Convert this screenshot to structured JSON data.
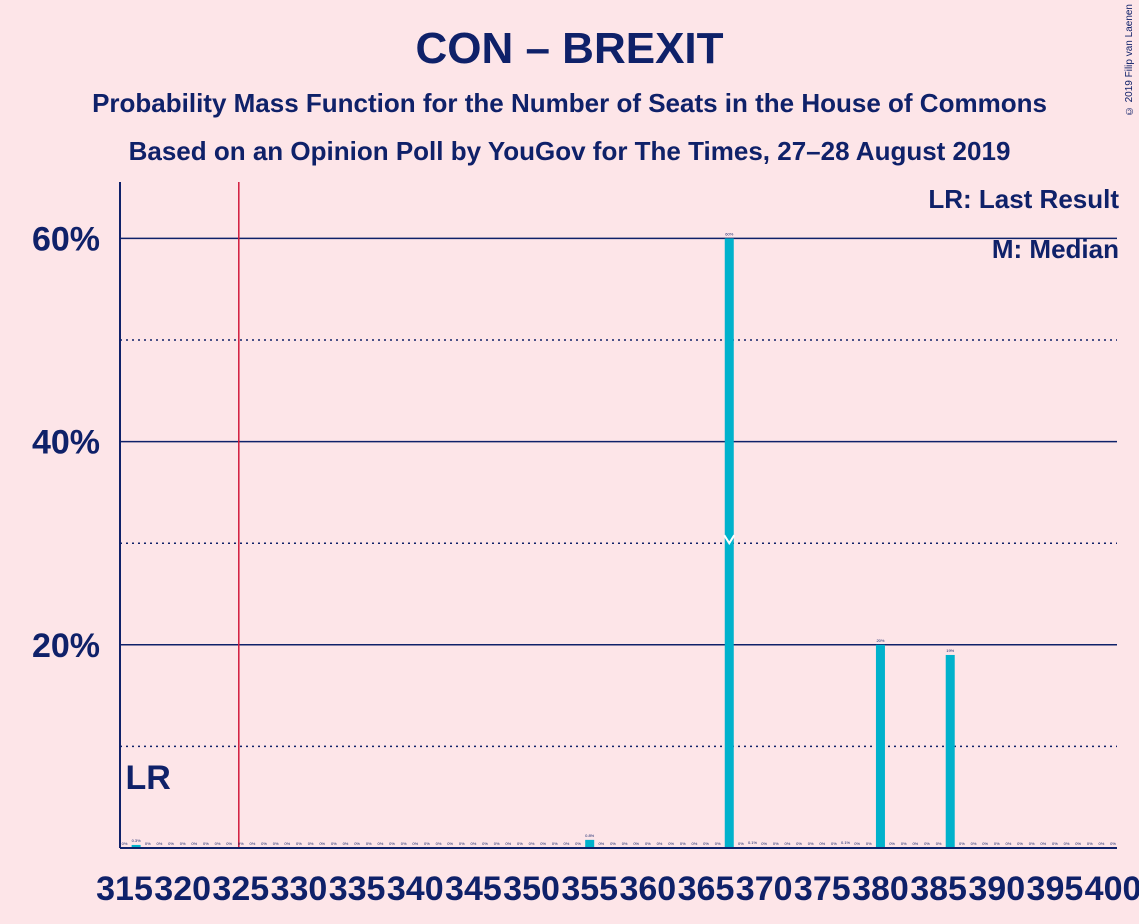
{
  "chart_data": {
    "type": "bar",
    "title": "CON – BREXIT",
    "subtitle_1": "Probability Mass Function for the Number of Seats in the House of Commons",
    "subtitle_2": "Based on an Opinion Poll by YouGov for The Times, 27–28 August 2019",
    "copyright": "© 2019 Filip van Laenen",
    "legend": {
      "last_result": "LR: Last Result",
      "median": "M: Median"
    },
    "lr_label": "LR",
    "last_result_seat": 325,
    "lr_label_seat": 316,
    "median_seat": 367,
    "median_marker_value": 30,
    "x_range": [
      315,
      400
    ],
    "y_range": [
      0,
      65
    ],
    "y_ticks": [
      {
        "value": 20,
        "label": "20%"
      },
      {
        "value": 40,
        "label": "40%"
      },
      {
        "value": 60,
        "label": "60%"
      }
    ],
    "dotted_gridlines": [
      10,
      30,
      50
    ],
    "x_ticks": [
      "315",
      "320",
      "325",
      "330",
      "335",
      "340",
      "345",
      "350",
      "355",
      "360",
      "365",
      "370",
      "375",
      "380",
      "385",
      "390",
      "395",
      "400"
    ],
    "bar_color": "#00b2cc",
    "lr_line_color": "#d21a3c",
    "axis_color": "#0f2169",
    "bars": [
      {
        "seat": 315,
        "value": 0,
        "label": "0%"
      },
      {
        "seat": 316,
        "value": 0.3,
        "label": "0.3%"
      },
      {
        "seat": 317,
        "value": 0,
        "label": "0%"
      },
      {
        "seat": 318,
        "value": 0,
        "label": "0%"
      },
      {
        "seat": 319,
        "value": 0,
        "label": "0%"
      },
      {
        "seat": 320,
        "value": 0,
        "label": "0%"
      },
      {
        "seat": 321,
        "value": 0,
        "label": "0%"
      },
      {
        "seat": 322,
        "value": 0,
        "label": "0%"
      },
      {
        "seat": 323,
        "value": 0,
        "label": "0%"
      },
      {
        "seat": 324,
        "value": 0,
        "label": "0%"
      },
      {
        "seat": 325,
        "value": 0,
        "label": "0%"
      },
      {
        "seat": 326,
        "value": 0,
        "label": "0%"
      },
      {
        "seat": 327,
        "value": 0,
        "label": "0%"
      },
      {
        "seat": 328,
        "value": 0,
        "label": "0%"
      },
      {
        "seat": 329,
        "value": 0,
        "label": "0%"
      },
      {
        "seat": 330,
        "value": 0,
        "label": "0%"
      },
      {
        "seat": 331,
        "value": 0,
        "label": "0%"
      },
      {
        "seat": 332,
        "value": 0,
        "label": "0%"
      },
      {
        "seat": 333,
        "value": 0,
        "label": "0%"
      },
      {
        "seat": 334,
        "value": 0,
        "label": "0%"
      },
      {
        "seat": 335,
        "value": 0,
        "label": "0%"
      },
      {
        "seat": 336,
        "value": 0,
        "label": "0%"
      },
      {
        "seat": 337,
        "value": 0,
        "label": "0%"
      },
      {
        "seat": 338,
        "value": 0,
        "label": "0%"
      },
      {
        "seat": 339,
        "value": 0,
        "label": "0%"
      },
      {
        "seat": 340,
        "value": 0,
        "label": "0%"
      },
      {
        "seat": 341,
        "value": 0,
        "label": "0%"
      },
      {
        "seat": 342,
        "value": 0,
        "label": "0%"
      },
      {
        "seat": 343,
        "value": 0,
        "label": "0%"
      },
      {
        "seat": 344,
        "value": 0,
        "label": "0%"
      },
      {
        "seat": 345,
        "value": 0,
        "label": "0%"
      },
      {
        "seat": 346,
        "value": 0,
        "label": "0%"
      },
      {
        "seat": 347,
        "value": 0,
        "label": "0%"
      },
      {
        "seat": 348,
        "value": 0,
        "label": "0%"
      },
      {
        "seat": 349,
        "value": 0,
        "label": "0%"
      },
      {
        "seat": 350,
        "value": 0,
        "label": "0%"
      },
      {
        "seat": 351,
        "value": 0,
        "label": "0%"
      },
      {
        "seat": 352,
        "value": 0,
        "label": "0%"
      },
      {
        "seat": 353,
        "value": 0,
        "label": "0%"
      },
      {
        "seat": 354,
        "value": 0,
        "label": "0%"
      },
      {
        "seat": 355,
        "value": 0.8,
        "label": "0.8%"
      },
      {
        "seat": 356,
        "value": 0,
        "label": "0%"
      },
      {
        "seat": 357,
        "value": 0,
        "label": "0%"
      },
      {
        "seat": 358,
        "value": 0,
        "label": "0%"
      },
      {
        "seat": 359,
        "value": 0,
        "label": "0%"
      },
      {
        "seat": 360,
        "value": 0,
        "label": "0%"
      },
      {
        "seat": 361,
        "value": 0,
        "label": "0%"
      },
      {
        "seat": 362,
        "value": 0,
        "label": "0%"
      },
      {
        "seat": 363,
        "value": 0,
        "label": "0%"
      },
      {
        "seat": 364,
        "value": 0,
        "label": "0%"
      },
      {
        "seat": 365,
        "value": 0,
        "label": "0%"
      },
      {
        "seat": 366,
        "value": 0,
        "label": "0%"
      },
      {
        "seat": 367,
        "value": 60,
        "label": "60%"
      },
      {
        "seat": 368,
        "value": 0,
        "label": "0%"
      },
      {
        "seat": 369,
        "value": 0.1,
        "label": "0.1%"
      },
      {
        "seat": 370,
        "value": 0,
        "label": "0%"
      },
      {
        "seat": 371,
        "value": 0,
        "label": "0%"
      },
      {
        "seat": 372,
        "value": 0,
        "label": "0%"
      },
      {
        "seat": 373,
        "value": 0,
        "label": "0%"
      },
      {
        "seat": 374,
        "value": 0,
        "label": "0%"
      },
      {
        "seat": 375,
        "value": 0,
        "label": "0%"
      },
      {
        "seat": 376,
        "value": 0,
        "label": "0%"
      },
      {
        "seat": 377,
        "value": 0.1,
        "label": "0.1%"
      },
      {
        "seat": 378,
        "value": 0,
        "label": "0%"
      },
      {
        "seat": 379,
        "value": 0,
        "label": "0%"
      },
      {
        "seat": 380,
        "value": 20,
        "label": "20%"
      },
      {
        "seat": 381,
        "value": 0,
        "label": "0%"
      },
      {
        "seat": 382,
        "value": 0,
        "label": "0%"
      },
      {
        "seat": 383,
        "value": 0,
        "label": "0%"
      },
      {
        "seat": 384,
        "value": 0,
        "label": "0%"
      },
      {
        "seat": 385,
        "value": 0,
        "label": "0%"
      },
      {
        "seat": 386,
        "value": 19,
        "label": "19%"
      },
      {
        "seat": 387,
        "value": 0,
        "label": "0%"
      },
      {
        "seat": 388,
        "value": 0,
        "label": "0%"
      },
      {
        "seat": 389,
        "value": 0,
        "label": "0%"
      },
      {
        "seat": 390,
        "value": 0,
        "label": "0%"
      },
      {
        "seat": 391,
        "value": 0,
        "label": "0%"
      },
      {
        "seat": 392,
        "value": 0,
        "label": "0%"
      },
      {
        "seat": 393,
        "value": 0,
        "label": "0%"
      },
      {
        "seat": 394,
        "value": 0,
        "label": "0%"
      },
      {
        "seat": 395,
        "value": 0,
        "label": "0%"
      },
      {
        "seat": 396,
        "value": 0,
        "label": "0%"
      },
      {
        "seat": 397,
        "value": 0,
        "label": "0%"
      },
      {
        "seat": 398,
        "value": 0,
        "label": "0%"
      },
      {
        "seat": 399,
        "value": 0,
        "label": "0%"
      },
      {
        "seat": 400,
        "value": 0,
        "label": "0%"
      }
    ]
  }
}
